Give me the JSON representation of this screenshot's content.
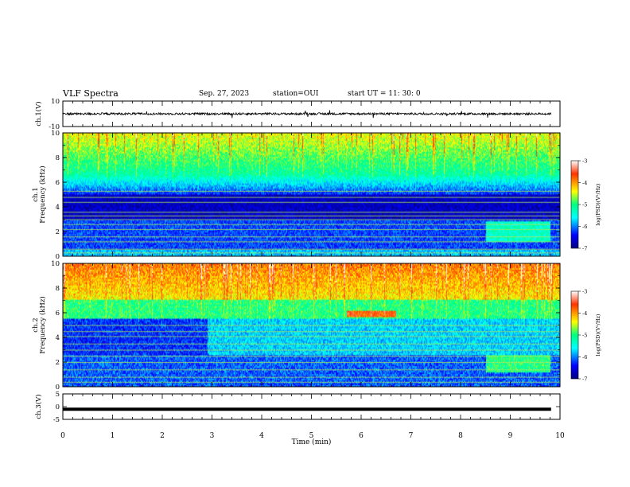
{
  "header": {
    "title": "VLF Spectra",
    "date": "Sep. 27, 2023",
    "station": "station=OUI",
    "start": "start  UT =   11: 30: 0"
  },
  "chart_data": [
    {
      "type": "line",
      "panel": "ch1-waveform",
      "ylabel": "ch.1(V)",
      "ylim": [
        -10,
        10
      ],
      "y_ticks": [
        "10",
        "-10"
      ],
      "baseline_value": 0,
      "color": "#000000"
    },
    {
      "type": "heatmap",
      "panel": "ch1-spectrogram",
      "ylabel": "ch.1\nFrequency (kHz)",
      "ylim": [
        0,
        10
      ],
      "y_ticks": [
        "0",
        "2",
        "4",
        "6",
        "8",
        "10"
      ],
      "colorbar": {
        "label": "log(PSD)(V²/Hz)",
        "range": [
          -7,
          -3
        ],
        "ticks": [
          "-3",
          "-4",
          "-5",
          "-6",
          "-7"
        ]
      }
    },
    {
      "type": "heatmap",
      "panel": "ch2-spectrogram",
      "ylabel": "ch.2\nFrequency (kHz)",
      "ylim": [
        0,
        10
      ],
      "y_ticks": [
        "0",
        "2",
        "4",
        "6",
        "8",
        "10"
      ],
      "colorbar": {
        "label": "log(PSD)(V²/Hz)",
        "range": [
          -7,
          -3
        ],
        "ticks": [
          "-3",
          "-4",
          "-5",
          "-6",
          "-7"
        ]
      }
    },
    {
      "type": "line",
      "panel": "ch3-waveform",
      "ylabel": "ch.3(V)",
      "ylim": [
        -5,
        5
      ],
      "y_ticks": [
        "5",
        "0",
        "-5"
      ],
      "baseline_value": -1,
      "color": "#000000"
    }
  ],
  "x_axis": {
    "xlabel": "Time (min)",
    "xlim": [
      0,
      10
    ],
    "ticks": [
      "0",
      "1",
      "2",
      "3",
      "4",
      "5",
      "6",
      "7",
      "8",
      "9",
      "10"
    ]
  }
}
